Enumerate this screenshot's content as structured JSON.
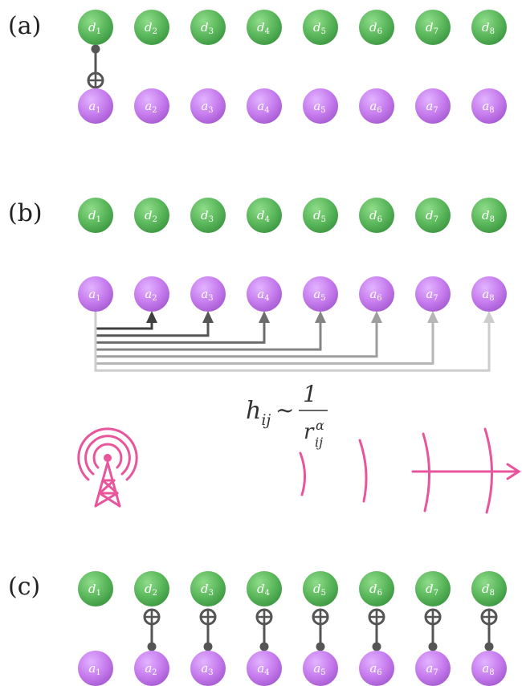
{
  "panels": [
    {
      "id": "a",
      "label": "(a)"
    },
    {
      "id": "b",
      "label": "(b)"
    },
    {
      "id": "c",
      "label": "(c)"
    }
  ],
  "qubit_rows": {
    "data_base": "d",
    "ancilla_base": "a",
    "indices": [
      "1",
      "2",
      "3",
      "4",
      "5",
      "6",
      "7",
      "8"
    ]
  },
  "formula": {
    "lhs": "h",
    "lhs_sub": "ij",
    "relation": "~",
    "numerator": "1",
    "den_base": "r",
    "den_sub": "ij",
    "den_sup": "α"
  },
  "colors": {
    "data_qubit": "#5cb85c",
    "ancilla_qubit": "#c77dee",
    "gate": "#555555",
    "laser": "#e8559b"
  },
  "icons": {
    "laser_source": "antenna-tower-icon",
    "wavefronts": "wavefront-arrow-icon"
  }
}
